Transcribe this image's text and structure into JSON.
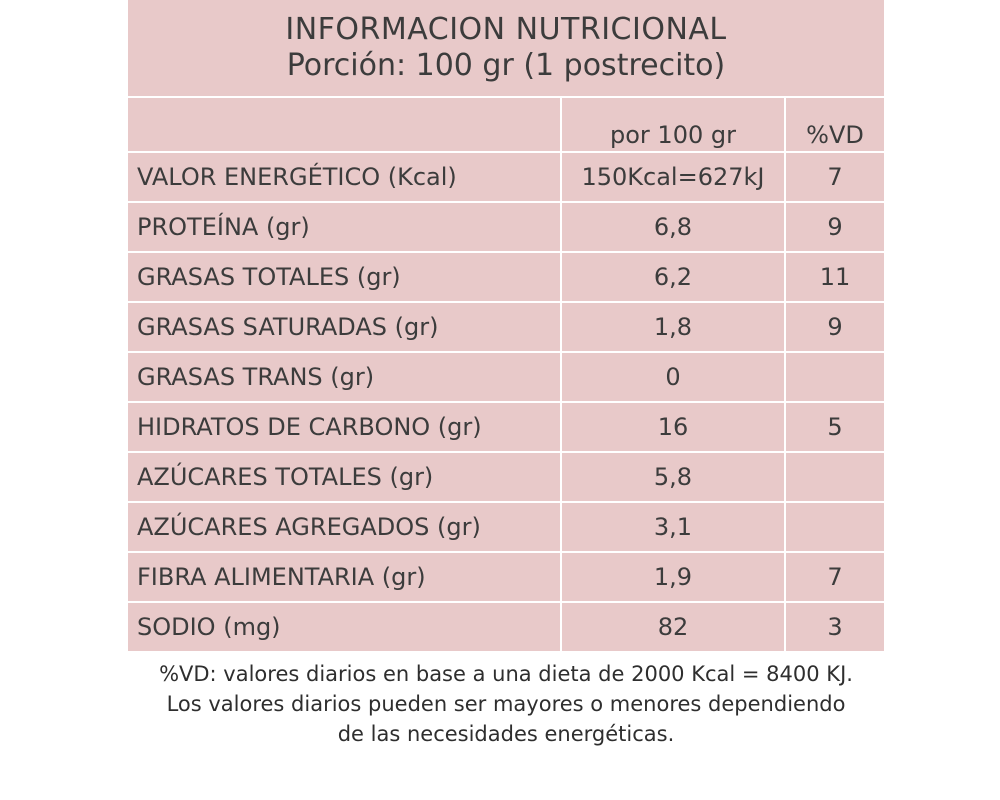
{
  "header": {
    "title": "INFORMACION NUTRICIONAL",
    "subtitle": "Porción: 100 gr (1 postrecito)"
  },
  "table": {
    "columns": [
      "",
      "por 100 gr",
      "%VD"
    ],
    "rows": [
      {
        "name": "VALOR ENERGÉTICO  (Kcal)",
        "value": "150Kcal=627kJ",
        "vd": "7"
      },
      {
        "name": "PROTEÍNA (gr)",
        "value": "6,8",
        "vd": "9"
      },
      {
        "name": "GRASAS TOTALES (gr)",
        "value": "6,2",
        "vd": "11"
      },
      {
        "name": "GRASAS SATURADAS (gr)",
        "value": "1,8",
        "vd": "9"
      },
      {
        "name": "GRASAS TRANS (gr)",
        "value": "0",
        "vd": ""
      },
      {
        "name": "HIDRATOS DE CARBONO (gr)",
        "value": "16",
        "vd": "5"
      },
      {
        "name": "AZÚCARES TOTALES (gr)",
        "value": "5,8",
        "vd": ""
      },
      {
        "name": "AZÚCARES AGREGADOS (gr)",
        "value": "3,1",
        "vd": ""
      },
      {
        "name": "FIBRA ALIMENTARIA (gr)",
        "value": "1,9",
        "vd": "7"
      },
      {
        "name": "SODIO (mg)",
        "value": "82",
        "vd": "3"
      }
    ]
  },
  "footnote": [
    "%VD:  valores diarios en base a una dieta de 2000 Kcal = 8400 KJ.",
    "Los valores diarios pueden ser mayores o menores dependiendo",
    "de las necesidades energéticas."
  ],
  "colors": {
    "cell_background": "#e8c9c9",
    "grid_lines": "#ffffff",
    "text": "#3c3c3c"
  }
}
